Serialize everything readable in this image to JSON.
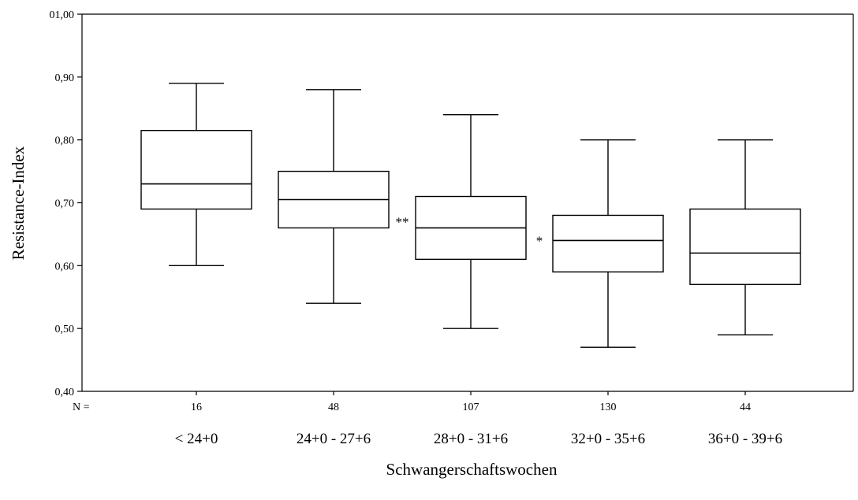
{
  "chart_data": {
    "type": "boxplot",
    "xlabel": "Schwangerschaftswochen",
    "ylabel": "Resistance-Index",
    "ylim": [
      0.4,
      1.0
    ],
    "yticks": [
      {
        "value": 0.4,
        "label": "0,40"
      },
      {
        "value": 0.5,
        "label": "0,50"
      },
      {
        "value": 0.6,
        "label": "0,60"
      },
      {
        "value": 0.7,
        "label": "0,70"
      },
      {
        "value": 0.8,
        "label": "0,80"
      },
      {
        "value": 0.9,
        "label": "0,90"
      },
      {
        "value": 1.0,
        "label": "01,00"
      }
    ],
    "n_prefix": "N =",
    "grid": false,
    "boxes": [
      {
        "category": "< 24+0",
        "n": "16",
        "min": 0.6,
        "q1": 0.69,
        "median": 0.73,
        "q3": 0.815,
        "max": 0.89
      },
      {
        "category": "24+0 - 27+6",
        "n": "48",
        "min": 0.54,
        "q1": 0.66,
        "median": 0.705,
        "q3": 0.75,
        "max": 0.88
      },
      {
        "category": "28+0 - 31+6",
        "n": "107",
        "min": 0.5,
        "q1": 0.61,
        "median": 0.66,
        "q3": 0.71,
        "max": 0.84
      },
      {
        "category": "32+0 - 35+6",
        "n": "130",
        "min": 0.47,
        "q1": 0.59,
        "median": 0.64,
        "q3": 0.68,
        "max": 0.8
      },
      {
        "category": "36+0 - 39+6",
        "n": "44",
        "min": 0.49,
        "q1": 0.57,
        "median": 0.62,
        "q3": 0.69,
        "max": 0.8
      }
    ],
    "annotations": [
      {
        "text": "**",
        "between": [
          1,
          2
        ],
        "y": 0.67
      },
      {
        "text": "*",
        "between": [
          2,
          3
        ],
        "y": 0.64
      }
    ]
  }
}
